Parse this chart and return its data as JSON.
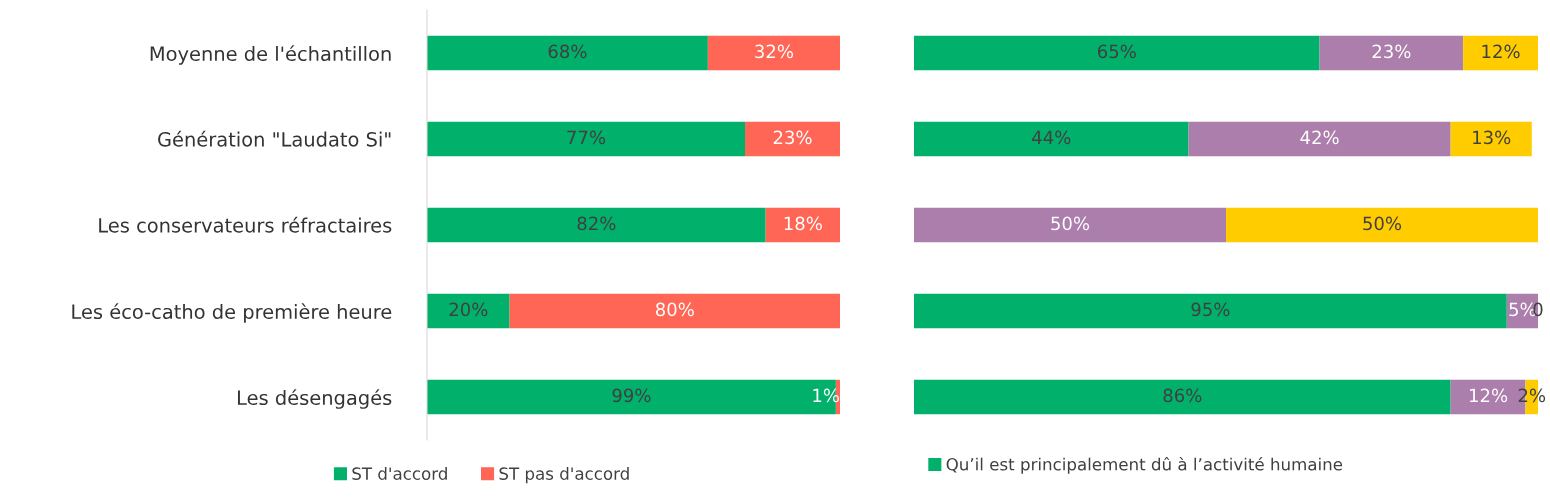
{
  "chart_data": [
    {
      "type": "bar",
      "orientation": "horizontal",
      "stacked": true,
      "categories": [
        "Moyenne de l'échantillon",
        "Génération \"Laudato Si\"",
        "Les conservateurs réfractaires",
        "Les éco-catho de première heure",
        "Les désengagés"
      ],
      "xlim": [
        0,
        100
      ],
      "tick_labels": "y",
      "legend": "bottom",
      "series": [
        {
          "name": "ST d'accord",
          "color": "#00b06b",
          "values": [
            68,
            77,
            82,
            20,
            99
          ],
          "value_labels": [
            "68%",
            "77%",
            "82%",
            "20%",
            "99%"
          ]
        },
        {
          "name": "ST pas d'accord",
          "color": "#ff6655",
          "values": [
            32,
            23,
            18,
            80,
            1
          ],
          "value_labels": [
            "32%",
            "23%",
            "18%",
            "80%",
            "1%"
          ]
        }
      ]
    },
    {
      "type": "bar",
      "orientation": "horizontal",
      "stacked": true,
      "categories": [
        null,
        null,
        null,
        null,
        null
      ],
      "xlim": [
        0,
        100
      ],
      "tick_labels": false,
      "legend": "bottom",
      "series": [
        {
          "name": "Qu’il est principalement dû à l’activité humaine",
          "color": "#00b06b",
          "values": [
            65,
            44,
            0,
            95,
            86
          ],
          "value_labels": [
            "65%",
            "44%",
            null,
            "95%",
            "86%"
          ]
        },
        {
          "color": "#ab7eab",
          "values": [
            23,
            42,
            50,
            5,
            12
          ],
          "value_labels": [
            "23%",
            "42%",
            "50%",
            "5%",
            "12%"
          ]
        },
        {
          "color": "#ffcc00",
          "values": [
            12,
            13,
            50,
            0,
            2
          ],
          "value_labels": [
            "12%",
            "13%",
            "50%",
            "0",
            "2%"
          ]
        }
      ]
    }
  ]
}
